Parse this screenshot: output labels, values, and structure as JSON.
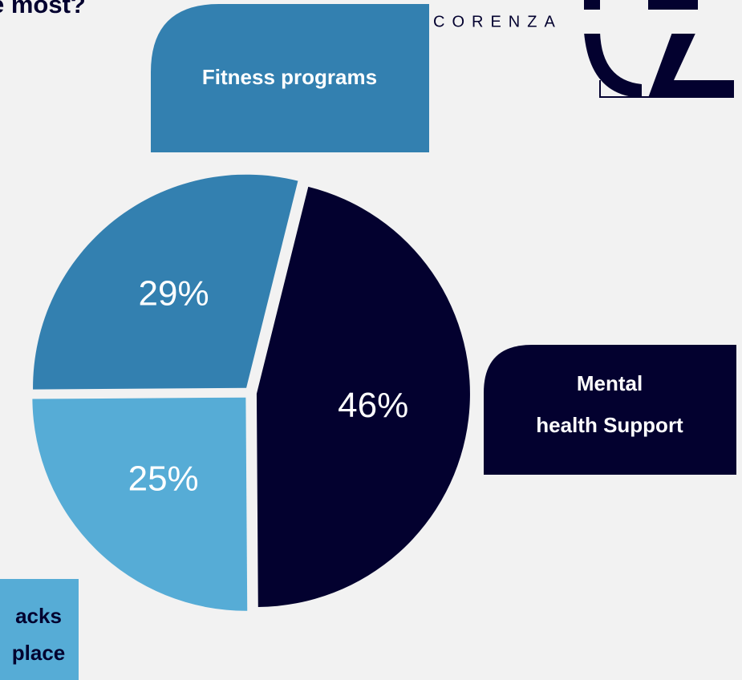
{
  "chart_data": {
    "type": "pie",
    "title": "e most?",
    "brand": "CORENZA",
    "categories": [
      [
        "Mental",
        "health Support"
      ],
      [
        "acks",
        "place"
      ],
      [
        "Fitness programs"
      ]
    ],
    "values": [
      46,
      25,
      29
    ],
    "value_labels": [
      "46%",
      "25%",
      "29%"
    ],
    "colors": [
      "#03012f",
      "#56acd6",
      "#3380b0"
    ]
  }
}
